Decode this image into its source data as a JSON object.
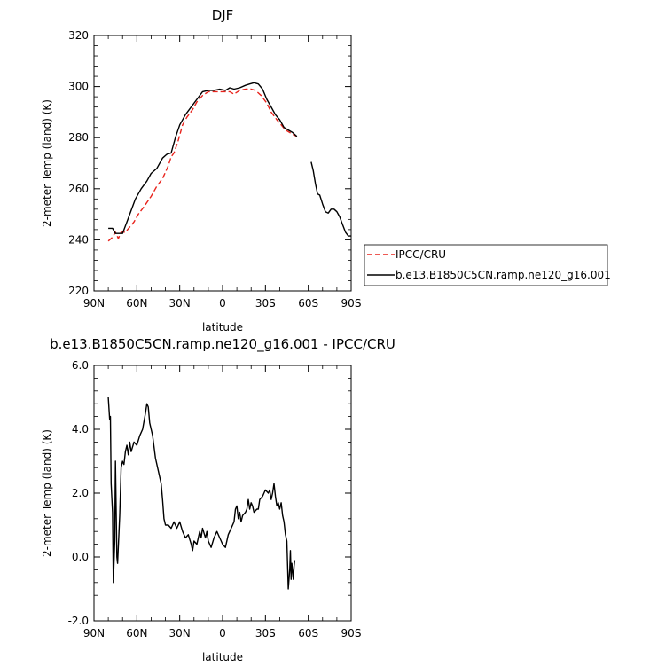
{
  "chart_data": [
    {
      "type": "line",
      "title": "DJF",
      "xlabel": "latitude",
      "ylabel": "2-meter Temp (land) (K)",
      "xlim": [
        90,
        -90
      ],
      "ylim": [
        220,
        320
      ],
      "x_ticks": [
        90,
        60,
        30,
        0,
        -30,
        -60,
        -90
      ],
      "x_tick_labels": [
        "90N",
        "60N",
        "30N",
        "0",
        "30S",
        "60S",
        "90S"
      ],
      "y_ticks": [
        220,
        240,
        260,
        280,
        300,
        320
      ],
      "y_tick_labels": [
        "220",
        "240",
        "260",
        "280",
        "300",
        "320"
      ],
      "legend_position": "right",
      "series": [
        {
          "name": "IPCC/CRU",
          "color": "#e8231c",
          "dash": "dashed",
          "segments": [
            [
              [
                80,
                239.5
              ],
              [
                77,
                241
              ],
              [
                75,
                243
              ],
              [
                73,
                240.5
              ],
              [
                71,
                243
              ],
              [
                68,
                243
              ],
              [
                65,
                245
              ],
              [
                62,
                247
              ],
              [
                59,
                250
              ],
              [
                55,
                253
              ],
              [
                50,
                257
              ],
              [
                46,
                261
              ],
              [
                42,
                264
              ],
              [
                38,
                269
              ],
              [
                36,
                272.5
              ],
              [
                34,
                274
              ],
              [
                31,
                279
              ],
              [
                28,
                285
              ],
              [
                25,
                288
              ],
              [
                21,
                291
              ],
              [
                18,
                294
              ],
              [
                14,
                296.5
              ],
              [
                10,
                298
              ],
              [
                5,
                298
              ],
              [
                0,
                298
              ],
              [
                -5,
                298
              ],
              [
                -8,
                297
              ],
              [
                -12,
                298.5
              ],
              [
                -16,
                299
              ],
              [
                -20,
                299
              ],
              [
                -23,
                298.5
              ],
              [
                -27,
                296.5
              ],
              [
                -31,
                293.5
              ],
              [
                -34,
                290
              ],
              [
                -38,
                287
              ],
              [
                -41,
                285
              ],
              [
                -44,
                283
              ],
              [
                -47,
                282
              ],
              [
                -50,
                281
              ],
              [
                -52,
                280.5
              ]
            ]
          ]
        },
        {
          "name": "b.e13.B1850C5CN.ramp.ne120_g16.001",
          "color": "#000000",
          "dash": "solid",
          "segments": [
            [
              [
                80,
                244.5
              ],
              [
                77,
                244.5
              ],
              [
                75,
                242.5
              ],
              [
                73,
                242.5
              ],
              [
                70,
                242.5
              ],
              [
                67,
                247
              ],
              [
                64,
                251.5
              ],
              [
                61,
                256
              ],
              [
                57,
                260
              ],
              [
                53,
                263
              ],
              [
                50,
                266
              ],
              [
                46,
                268
              ],
              [
                42,
                272
              ],
              [
                39,
                273.5
              ],
              [
                36,
                274
              ],
              [
                33,
                280
              ],
              [
                30,
                285
              ],
              [
                26,
                289
              ],
              [
                22,
                292
              ],
              [
                18,
                295
              ],
              [
                14,
                298
              ],
              [
                10,
                298.5
              ],
              [
                6,
                298.5
              ],
              [
                2,
                299
              ],
              [
                -2,
                298.5
              ],
              [
                -5,
                299.5
              ],
              [
                -8,
                299
              ],
              [
                -12,
                299.5
              ],
              [
                -16,
                300.5
              ],
              [
                -19,
                301
              ],
              [
                -22,
                301.5
              ],
              [
                -25,
                301
              ],
              [
                -28,
                299
              ],
              [
                -31,
                295
              ],
              [
                -34,
                292
              ],
              [
                -37,
                289
              ],
              [
                -40,
                287
              ],
              [
                -43,
                284
              ],
              [
                -46,
                283
              ],
              [
                -49,
                282
              ],
              [
                -52,
                280.5
              ]
            ],
            [
              [
                -62,
                270.5
              ],
              [
                -63.5,
                267
              ],
              [
                -65,
                262
              ],
              [
                -66.5,
                258
              ],
              [
                -68,
                257.5
              ],
              [
                -70,
                254
              ],
              [
                -72,
                251
              ],
              [
                -74,
                250.5
              ],
              [
                -76,
                252
              ],
              [
                -78,
                252
              ],
              [
                -80,
                251
              ],
              [
                -82,
                249
              ],
              [
                -84,
                246
              ],
              [
                -86,
                243
              ],
              [
                -88,
                241.5
              ],
              [
                -90,
                241.5
              ]
            ]
          ]
        }
      ]
    },
    {
      "type": "line",
      "title": "b.e13.B1850C5CN.ramp.ne120_g16.001 - IPCC/CRU",
      "xlabel": "latitude",
      "ylabel": "2-meter Temp (land) (K)",
      "xlim": [
        90,
        -90
      ],
      "ylim": [
        -2.0,
        6.0
      ],
      "x_ticks": [
        90,
        60,
        30,
        0,
        -30,
        -60,
        -90
      ],
      "x_tick_labels": [
        "90N",
        "60N",
        "30N",
        "0",
        "30S",
        "60S",
        "90S"
      ],
      "y_ticks": [
        -2.0,
        0.0,
        2.0,
        4.0,
        6.0
      ],
      "y_tick_labels": [
        "-2.0",
        "0.0",
        "2.0",
        "4.0",
        "6.0"
      ],
      "series": [
        {
          "color": "#000000",
          "dash": "solid",
          "segments": [
            [
              [
                80,
                5.0
              ],
              [
                79,
                4.3
              ],
              [
                78.5,
                4.4
              ],
              [
                78,
                2.3
              ],
              [
                77,
                1.4
              ],
              [
                76.5,
                -0.8
              ],
              [
                75.5,
                0.5
              ],
              [
                75,
                3.0
              ],
              [
                74,
                0.0
              ],
              [
                73.5,
                -0.2
              ],
              [
                72.5,
                0.8
              ],
              [
                72,
                1.3
              ],
              [
                71,
                2.8
              ],
              [
                70,
                3.0
              ],
              [
                69,
                2.9
              ],
              [
                68,
                3.3
              ],
              [
                67,
                3.5
              ],
              [
                66,
                3.2
              ],
              [
                65,
                3.6
              ],
              [
                64,
                3.3
              ],
              [
                62,
                3.6
              ],
              [
                60,
                3.5
              ],
              [
                58,
                3.8
              ],
              [
                56,
                4.0
              ],
              [
                54,
                4.5
              ],
              [
                53,
                4.8
              ],
              [
                52,
                4.7
              ],
              [
                51,
                4.2
              ],
              [
                49,
                3.8
              ],
              [
                47,
                3.1
              ],
              [
                45,
                2.7
              ],
              [
                43,
                2.3
              ],
              [
                42,
                1.8
              ],
              [
                41,
                1.2
              ],
              [
                40,
                1.0
              ],
              [
                38,
                1.0
              ],
              [
                36,
                0.9
              ],
              [
                34,
                1.1
              ],
              [
                32,
                0.9
              ],
              [
                30,
                1.1
              ],
              [
                28,
                0.8
              ],
              [
                26,
                0.6
              ],
              [
                24,
                0.7
              ],
              [
                22,
                0.4
              ],
              [
                21,
                0.2
              ],
              [
                20,
                0.5
              ],
              [
                18,
                0.4
              ],
              [
                16,
                0.8
              ],
              [
                15,
                0.6
              ],
              [
                14,
                0.9
              ],
              [
                12,
                0.6
              ],
              [
                11,
                0.8
              ],
              [
                10,
                0.5
              ],
              [
                8,
                0.3
              ],
              [
                6,
                0.6
              ],
              [
                4,
                0.8
              ],
              [
                2,
                0.6
              ],
              [
                0,
                0.4
              ],
              [
                -2,
                0.3
              ],
              [
                -4,
                0.7
              ],
              [
                -6,
                0.9
              ],
              [
                -8,
                1.1
              ],
              [
                -9,
                1.5
              ],
              [
                -10,
                1.6
              ],
              [
                -11,
                1.2
              ],
              [
                -12,
                1.4
              ],
              [
                -13,
                1.1
              ],
              [
                -14,
                1.3
              ],
              [
                -16,
                1.4
              ],
              [
                -17,
                1.5
              ],
              [
                -18,
                1.8
              ],
              [
                -19,
                1.5
              ],
              [
                -20,
                1.7
              ],
              [
                -21,
                1.6
              ],
              [
                -22,
                1.4
              ],
              [
                -24,
                1.5
              ],
              [
                -25,
                1.5
              ],
              [
                -26,
                1.8
              ],
              [
                -28,
                1.9
              ],
              [
                -30,
                2.1
              ],
              [
                -32,
                2.0
              ],
              [
                -33,
                2.1
              ],
              [
                -34,
                1.8
              ],
              [
                -35,
                2.0
              ],
              [
                -36,
                2.3
              ],
              [
                -37,
                1.9
              ],
              [
                -38,
                1.6
              ],
              [
                -39,
                1.7
              ],
              [
                -40,
                1.5
              ],
              [
                -41,
                1.7
              ],
              [
                -42,
                1.3
              ],
              [
                -43,
                1.1
              ],
              [
                -44,
                0.7
              ],
              [
                -45,
                0.5
              ],
              [
                -46,
                -1.0
              ],
              [
                -47,
                -0.4
              ],
              [
                -47.5,
                0.2
              ],
              [
                -48,
                -0.7
              ],
              [
                -48.5,
                -0.2
              ],
              [
                -49.5,
                -0.7
              ],
              [
                -50,
                -0.3
              ],
              [
                -50.5,
                -0.1
              ]
            ]
          ]
        }
      ]
    }
  ]
}
